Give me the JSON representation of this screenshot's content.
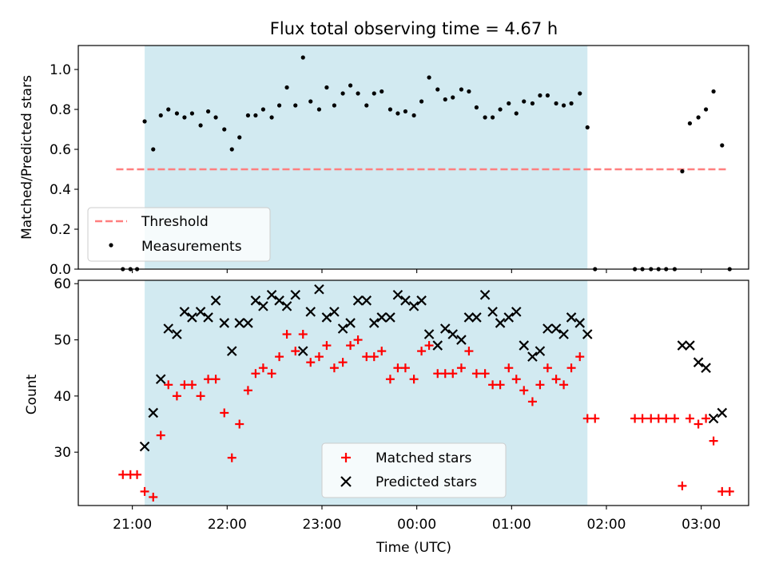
{
  "colors": {
    "span": "#add8e6",
    "threshold": "#ff7f7f",
    "measurement": "#000000",
    "matched": "#ff0000",
    "predicted": "#000000"
  },
  "chart_data": [
    {
      "type": "scatter",
      "title": "Flux total observing time = 4.67 h",
      "xlabel": "",
      "ylabel": "Matched/Predicted stars",
      "x_unit": "hours (21:00 = 21, 00:00 = 24)",
      "xlim": [
        20.43,
        27.5
      ],
      "ylim": [
        0.0,
        1.12
      ],
      "yticks": [
        0.0,
        0.2,
        0.4,
        0.6,
        0.8,
        1.0
      ],
      "ytick_labels": [
        "0.0",
        "0.2",
        "0.4",
        "0.6",
        "0.8",
        "1.0"
      ],
      "observing_span": [
        21.13,
        25.8
      ],
      "threshold": {
        "name": "Threshold",
        "y": 0.5,
        "x_range": [
          20.83,
          27.27
        ]
      },
      "legend": {
        "placement": "lower-left",
        "entries": [
          "Threshold",
          "Measurements"
        ]
      },
      "series": [
        {
          "name": "Measurements",
          "x": [
            20.9,
            20.98,
            21.05,
            21.13,
            21.22,
            21.3,
            21.38,
            21.47,
            21.55,
            21.63,
            21.72,
            21.8,
            21.88,
            21.97,
            22.05,
            22.13,
            22.22,
            22.3,
            22.38,
            22.47,
            22.55,
            22.63,
            22.72,
            22.8,
            22.88,
            22.97,
            23.05,
            23.13,
            23.22,
            23.3,
            23.38,
            23.47,
            23.55,
            23.63,
            23.72,
            23.8,
            23.88,
            23.97,
            24.05,
            24.13,
            24.22,
            24.3,
            24.38,
            24.47,
            24.55,
            24.63,
            24.72,
            24.8,
            24.88,
            24.97,
            25.05,
            25.13,
            25.22,
            25.3,
            25.38,
            25.47,
            25.55,
            25.63,
            25.72,
            25.8,
            25.88,
            26.3,
            26.38,
            26.47,
            26.55,
            26.63,
            26.72,
            26.8,
            26.88,
            26.97,
            27.05,
            27.13,
            27.22,
            27.3
          ],
          "y": [
            0.0,
            0.0,
            0.0,
            0.74,
            0.6,
            0.77,
            0.8,
            0.78,
            0.76,
            0.78,
            0.72,
            0.79,
            0.76,
            0.7,
            0.6,
            0.66,
            0.77,
            0.77,
            0.8,
            0.76,
            0.82,
            0.91,
            0.82,
            1.06,
            0.84,
            0.8,
            0.91,
            0.82,
            0.88,
            0.92,
            0.88,
            0.82,
            0.88,
            0.89,
            0.8,
            0.78,
            0.79,
            0.77,
            0.84,
            0.96,
            0.9,
            0.85,
            0.86,
            0.9,
            0.89,
            0.81,
            0.76,
            0.76,
            0.8,
            0.83,
            0.78,
            0.84,
            0.83,
            0.87,
            0.87,
            0.83,
            0.82,
            0.83,
            0.88,
            0.71,
            0.0,
            0.0,
            0.0,
            0.0,
            0.0,
            0.0,
            0.0,
            0.49,
            0.73,
            0.76,
            0.8,
            0.89,
            0.62,
            0.0
          ]
        }
      ]
    },
    {
      "type": "scatter",
      "title": "",
      "xlabel": "Time (UTC)",
      "ylabel": "Count",
      "x_unit": "hours (21:00 = 21, 00:00 = 24)",
      "xlim": [
        20.43,
        27.5
      ],
      "ylim": [
        20.5,
        60.6
      ],
      "yticks": [
        30,
        40,
        50,
        60
      ],
      "ytick_labels": [
        "30",
        "40",
        "50",
        "60"
      ],
      "xticks": [
        21,
        22,
        23,
        24,
        25,
        26,
        27
      ],
      "xtick_labels": [
        "21:00",
        "22:00",
        "23:00",
        "00:00",
        "01:00",
        "02:00",
        "03:00"
      ],
      "observing_span": [
        21.13,
        25.8
      ],
      "legend": {
        "placement": "lower-center",
        "entries": [
          "Matched stars",
          "Predicted stars"
        ]
      },
      "series": [
        {
          "name": "Matched stars",
          "x": [
            20.9,
            20.98,
            21.05,
            21.13,
            21.22,
            21.3,
            21.38,
            21.47,
            21.55,
            21.63,
            21.72,
            21.8,
            21.88,
            21.97,
            22.05,
            22.13,
            22.22,
            22.3,
            22.38,
            22.47,
            22.55,
            22.63,
            22.72,
            22.8,
            22.88,
            22.97,
            23.05,
            23.13,
            23.22,
            23.3,
            23.38,
            23.47,
            23.55,
            23.63,
            23.72,
            23.8,
            23.88,
            23.97,
            24.05,
            24.13,
            24.22,
            24.3,
            24.38,
            24.47,
            24.55,
            24.63,
            24.72,
            24.8,
            24.88,
            24.97,
            25.05,
            25.13,
            25.22,
            25.3,
            25.38,
            25.47,
            25.55,
            25.63,
            25.72,
            25.8,
            25.88,
            26.3,
            26.38,
            26.47,
            26.55,
            26.63,
            26.72,
            26.8,
            26.88,
            26.97,
            27.05,
            27.13,
            27.22,
            27.3
          ],
          "y": [
            26,
            26,
            26,
            23,
            22,
            33,
            42,
            40,
            42,
            42,
            40,
            43,
            43,
            37,
            29,
            35,
            41,
            44,
            45,
            44,
            47,
            51,
            48,
            51,
            46,
            47,
            49,
            45,
            46,
            49,
            50,
            47,
            47,
            48,
            43,
            45,
            45,
            43,
            48,
            49,
            44,
            44,
            44,
            45,
            48,
            44,
            44,
            42,
            42,
            45,
            43,
            41,
            39,
            42,
            45,
            43,
            42,
            45,
            47,
            36,
            36,
            36,
            36,
            36,
            36,
            36,
            36,
            24,
            36,
            35,
            36,
            32,
            23,
            23
          ]
        },
        {
          "name": "Predicted stars",
          "x": [
            21.13,
            21.22,
            21.3,
            21.38,
            21.47,
            21.55,
            21.63,
            21.72,
            21.8,
            21.88,
            21.97,
            22.05,
            22.13,
            22.22,
            22.3,
            22.38,
            22.47,
            22.55,
            22.63,
            22.72,
            22.8,
            22.88,
            22.97,
            23.05,
            23.13,
            23.22,
            23.3,
            23.38,
            23.47,
            23.55,
            23.63,
            23.72,
            23.8,
            23.88,
            23.97,
            24.05,
            24.13,
            24.22,
            24.3,
            24.38,
            24.47,
            24.55,
            24.63,
            24.72,
            24.8,
            24.88,
            24.97,
            25.05,
            25.13,
            25.22,
            25.3,
            25.38,
            25.47,
            25.55,
            25.63,
            25.72,
            25.8,
            26.8,
            26.88,
            26.97,
            27.05,
            27.13,
            27.22
          ],
          "y": [
            31,
            37,
            43,
            52,
            51,
            55,
            54,
            55,
            54,
            57,
            53,
            48,
            53,
            53,
            57,
            56,
            58,
            57,
            56,
            58,
            48,
            55,
            59,
            54,
            55,
            52,
            53,
            57,
            57,
            53,
            54,
            54,
            58,
            57,
            56,
            57,
            51,
            49,
            52,
            51,
            50,
            54,
            54,
            58,
            55,
            53,
            54,
            55,
            49,
            47,
            48,
            52,
            52,
            51,
            54,
            53,
            51,
            49,
            49,
            46,
            45,
            36,
            37
          ]
        }
      ]
    }
  ]
}
